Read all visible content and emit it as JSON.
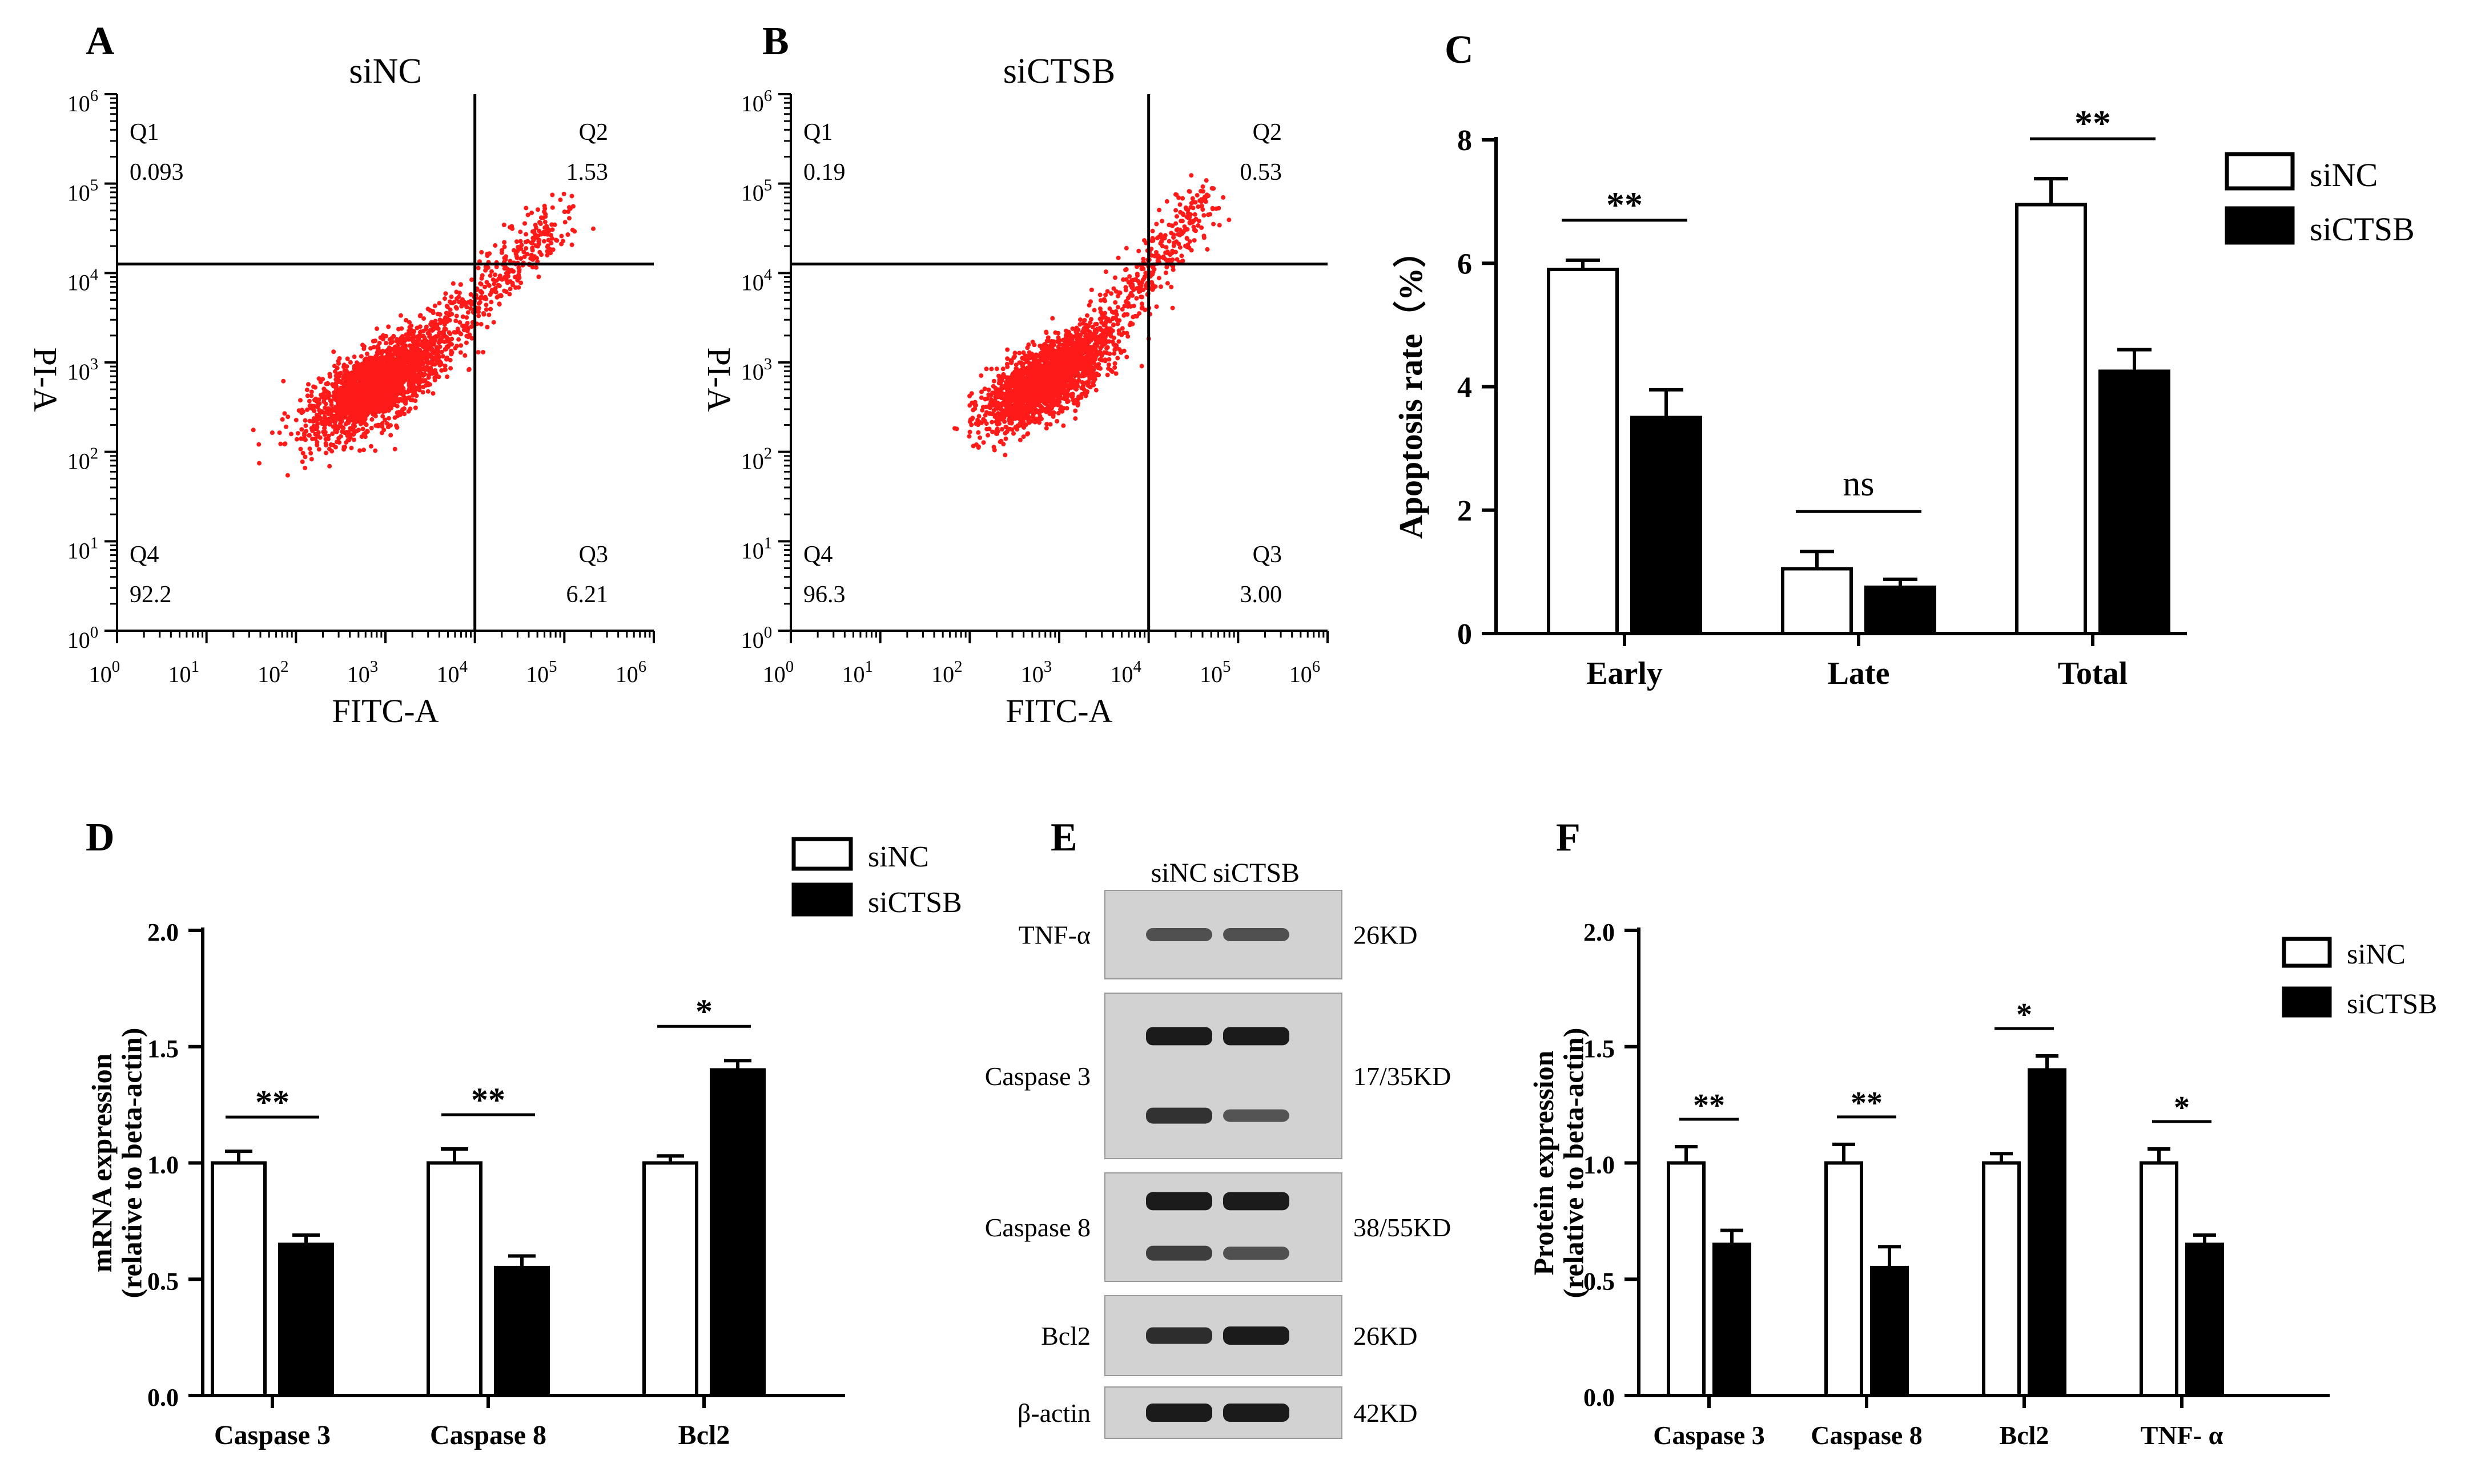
{
  "colors": {
    "sinc_fill": "#ffffff",
    "sictsb_fill": "#000000",
    "dots": "#ff1a1a",
    "axis": "#000000"
  },
  "chart_data": [
    {
      "panel": "A",
      "type": "scatter",
      "title": "siNC",
      "xlabel": "FITC-A",
      "ylabel": "PI-A",
      "x_scale": "log",
      "y_scale": "log",
      "x_ticks": [
        "10^0",
        "10^1",
        "10^2",
        "10^3",
        "10^4",
        "10^5",
        "10^6"
      ],
      "y_ticks": [
        "10^0",
        "10^1",
        "10^2",
        "10^3",
        "10^4",
        "10^5",
        "10^6"
      ],
      "gate_x_exp": 4.0,
      "gate_y_exp": 4.1,
      "quadrants": [
        {
          "id": "Q1",
          "value": "0.093"
        },
        {
          "id": "Q2",
          "value": "1.53"
        },
        {
          "id": "Q3",
          "value": "6.21"
        },
        {
          "id": "Q4",
          "value": "92.2"
        }
      ],
      "population": {
        "center_exp": [
          2.9,
          2.75
        ],
        "spread": 0.42,
        "tail_to_exp": [
          5.0,
          4.65
        ]
      }
    },
    {
      "panel": "B",
      "type": "scatter",
      "title": "siCTSB",
      "xlabel": "FITC-A",
      "ylabel": "PI-A",
      "x_scale": "log",
      "y_scale": "log",
      "x_ticks": [
        "10^0",
        "10^1",
        "10^2",
        "10^3",
        "10^4",
        "10^5",
        "10^6"
      ],
      "y_ticks": [
        "10^0",
        "10^1",
        "10^2",
        "10^3",
        "10^4",
        "10^5",
        "10^6"
      ],
      "gate_x_exp": 4.0,
      "gate_y_exp": 4.1,
      "quadrants": [
        {
          "id": "Q1",
          "value": "0.19"
        },
        {
          "id": "Q2",
          "value": "0.53"
        },
        {
          "id": "Q3",
          "value": "3.00"
        },
        {
          "id": "Q4",
          "value": "96.3"
        }
      ],
      "population": {
        "center_exp": [
          2.85,
          2.8
        ],
        "spread": 0.38,
        "tail_to_exp": [
          4.7,
          4.9
        ]
      }
    },
    {
      "panel": "C",
      "type": "bar",
      "title": "",
      "ylabel": "Apoptosis rate（%）",
      "ylim": [
        0,
        8
      ],
      "y_ticks": [
        "0",
        "2",
        "4",
        "6",
        "8"
      ],
      "y_tick_values": [
        0,
        2,
        4,
        6,
        8
      ],
      "categories": [
        "Early",
        "Late",
        "Total"
      ],
      "series": [
        {
          "name": "siNC",
          "values": [
            5.9,
            1.05,
            6.95
          ],
          "errors": [
            0.15,
            0.28,
            0.42
          ]
        },
        {
          "name": "siCTSB",
          "values": [
            3.5,
            0.75,
            4.25
          ],
          "errors": [
            0.45,
            0.13,
            0.35
          ]
        }
      ],
      "significance": [
        "**",
        "ns",
        "**"
      ],
      "legend": [
        "siNC",
        "siCTSB"
      ]
    },
    {
      "panel": "D",
      "type": "bar",
      "title": "",
      "ylabel": "mRNA expression",
      "ylabel2": "(relative to beta-actin)",
      "ylim": [
        0,
        2.0
      ],
      "y_ticks": [
        "0.0",
        "0.5",
        "1.0",
        "1.5",
        "2.0"
      ],
      "y_tick_values": [
        0,
        0.5,
        1.0,
        1.5,
        2.0
      ],
      "categories": [
        "Caspase 3",
        "Caspase 8",
        "Bcl2"
      ],
      "series": [
        {
          "name": "siNC",
          "values": [
            1.0,
            1.0,
            1.0
          ],
          "errors": [
            0.05,
            0.06,
            0.03
          ]
        },
        {
          "name": "siCTSB",
          "values": [
            0.65,
            0.55,
            1.4
          ],
          "errors": [
            0.04,
            0.05,
            0.04
          ]
        }
      ],
      "significance": [
        "**",
        "**",
        "*"
      ],
      "legend": [
        "siNC",
        "siCTSB"
      ]
    },
    {
      "panel": "F",
      "type": "bar",
      "title": "",
      "ylabel": "Protein expression",
      "ylabel2": "(relative to beta-actin)",
      "ylim": [
        0,
        2.0
      ],
      "y_ticks": [
        "0.0",
        "0.5",
        "1.0",
        "1.5",
        "2.0"
      ],
      "y_tick_values": [
        0,
        0.5,
        1.0,
        1.5,
        2.0
      ],
      "categories": [
        "Caspase 3",
        "Caspase 8",
        "Bcl2",
        "TNF- α"
      ],
      "series": [
        {
          "name": "siNC",
          "values": [
            1.0,
            1.0,
            1.0,
            1.0
          ],
          "errors": [
            0.07,
            0.08,
            0.04,
            0.06
          ]
        },
        {
          "name": "siCTSB",
          "values": [
            0.65,
            0.55,
            1.4,
            0.65
          ],
          "errors": [
            0.06,
            0.09,
            0.06,
            0.04
          ]
        }
      ],
      "significance": [
        "**",
        "**",
        "*",
        "*"
      ],
      "legend": [
        "siNC",
        "siCTSB"
      ]
    }
  ],
  "western_blot": {
    "panel": "E",
    "lanes": [
      "siNC",
      "siCTSB"
    ],
    "rows": [
      {
        "label": "TNF-α",
        "size": "26KD",
        "bands": [
          [
            0.55,
            0.55
          ]
        ]
      },
      {
        "label": "Caspase 3",
        "size": "17/35KD",
        "bands": [
          [
            1.0,
            1.0
          ],
          [
            0.8,
            0.5
          ]
        ]
      },
      {
        "label": "Caspase 8",
        "size": "38/55KD",
        "bands": [
          [
            1.0,
            1.0
          ],
          [
            0.7,
            0.55
          ]
        ]
      },
      {
        "label": "Bcl2",
        "size": "26KD",
        "bands": [
          [
            0.85,
            1.0
          ]
        ]
      },
      {
        "label": "β-actin",
        "size": "42KD",
        "bands": [
          [
            1.0,
            1.0
          ]
        ]
      }
    ]
  }
}
